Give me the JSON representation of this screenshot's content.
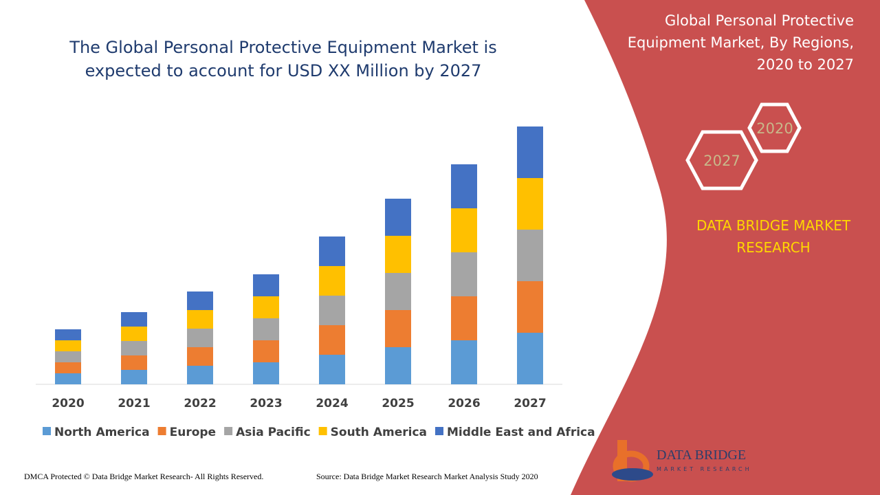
{
  "chart_data": {
    "type": "stacked-bar",
    "title": "The Global Personal Protective Equipment Market is expected to account for USD XX Million by 2027",
    "categories": [
      "2020",
      "2021",
      "2022",
      "2023",
      "2024",
      "2025",
      "2026",
      "2027"
    ],
    "series": [
      {
        "name": "North America",
        "color": "#5b9bd5",
        "values": [
          16,
          21,
          27,
          32,
          43,
          54,
          64,
          75
        ]
      },
      {
        "name": "Europe",
        "color": "#ed7d31",
        "values": [
          16,
          21,
          27,
          32,
          43,
          54,
          64,
          75
        ]
      },
      {
        "name": "Asia Pacific",
        "color": "#a5a5a5",
        "values": [
          16,
          21,
          27,
          32,
          43,
          54,
          64,
          75
        ]
      },
      {
        "name": "South America",
        "color": "#ffc000",
        "values": [
          16,
          21,
          27,
          32,
          43,
          54,
          64,
          75
        ]
      },
      {
        "name": "Middle East and Africa",
        "color": "#4472c4",
        "values": [
          16,
          21,
          27,
          32,
          43,
          54,
          64,
          75
        ]
      }
    ],
    "legend": "bottom"
  },
  "panel": {
    "title": "Global Personal Protective Equipment Market, By Regions, 2020 to 2027",
    "hex_labels": [
      "2020",
      "2027"
    ],
    "brand": "DATA BRIDGE MARKET RESEARCH"
  },
  "logo": {
    "name": "DATA BRIDGE",
    "tagline": "MARKET RESEARCH"
  },
  "footer": {
    "copyright": "DMCA Protected © Data Bridge Market Research- All Rights Reserved.",
    "source": "Source: Data Bridge Market Research Market Analysis Study 2020"
  }
}
